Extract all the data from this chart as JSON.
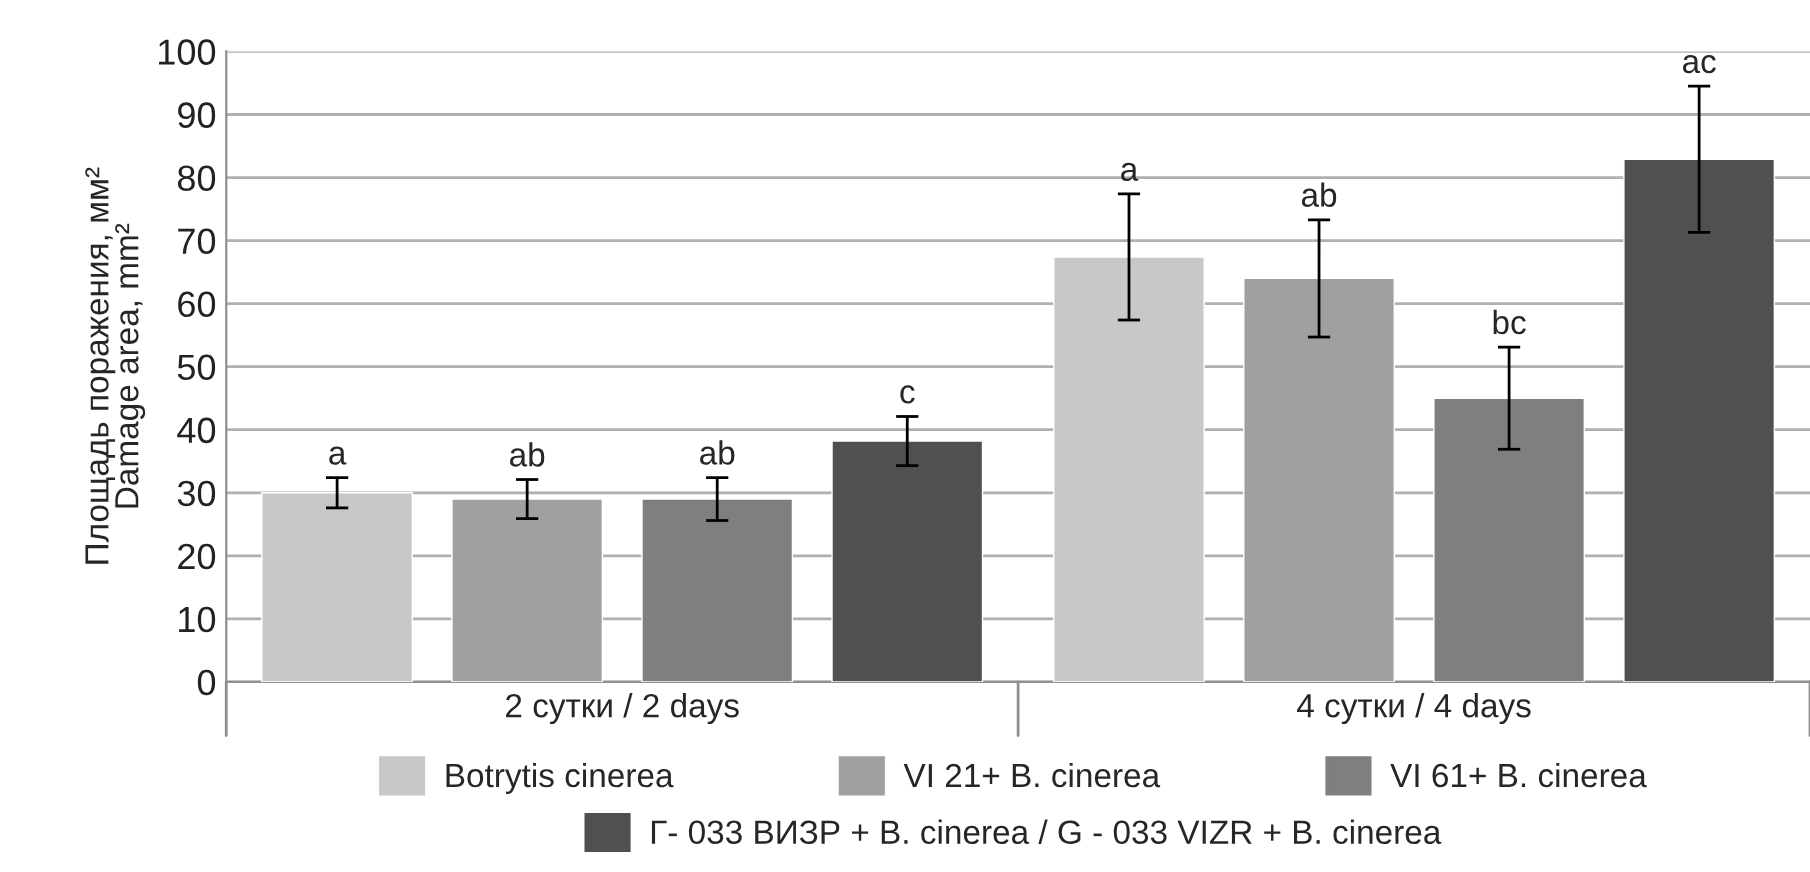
{
  "chart_data": {
    "type": "bar",
    "ylabel": "Площадь поражения, мм²\nDamage area, mm²",
    "categories": [
      "2 сутки / 2 days",
      "4 сутки / 4 days"
    ],
    "series": [
      {
        "name": "Botrytis cinerea",
        "color": "#c8c8c8",
        "values": [
          30,
          67.4
        ],
        "errors": [
          2.4,
          10
        ]
      },
      {
        "name": "VI 21+ B. cinerea",
        "color": "#a0a0a0",
        "values": [
          29,
          64
        ],
        "errors": [
          3.1,
          9.3
        ]
      },
      {
        "name": "VI 61+ B. cinerea",
        "color": "#7f7f7f",
        "values": [
          29,
          45
        ],
        "errors": [
          3.4,
          8.1
        ]
      },
      {
        "name": "Г- 033 ВИЗР + B. cinerea / G - 033 VIZR + B. cinerea",
        "color": "#505050",
        "values": [
          38.2,
          82.9
        ],
        "errors": [
          3.9,
          11.6
        ]
      }
    ],
    "annotations": [
      "a",
      "a",
      "ab",
      "ab",
      "ab",
      "bc",
      "c",
      "ac"
    ],
    "ylim": [
      0,
      100
    ],
    "yticks": [
      0,
      10,
      20,
      30,
      40,
      50,
      60,
      70,
      80,
      90,
      100
    ],
    "grid": "y",
    "legend": "bottom"
  }
}
